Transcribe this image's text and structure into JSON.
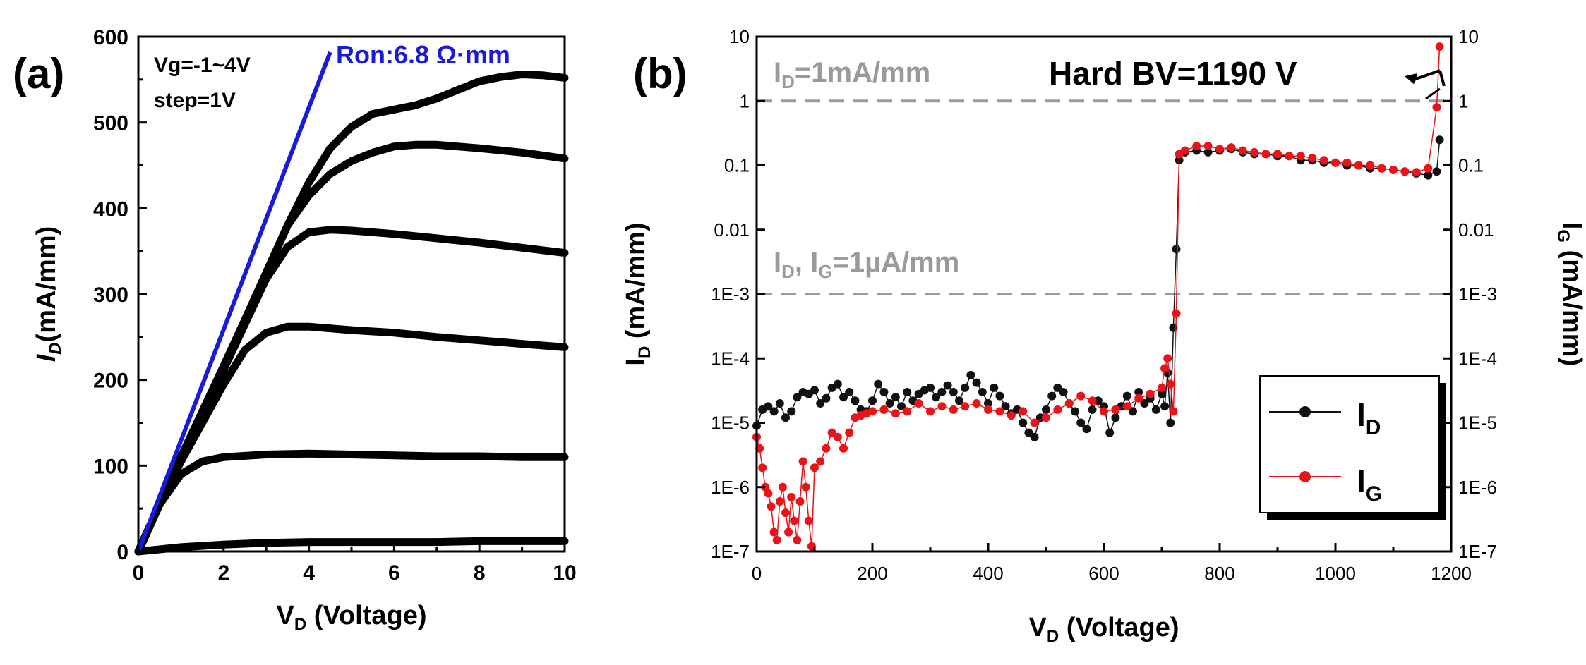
{
  "panels": {
    "a": {
      "label": "(a)",
      "annotation_vg": "Vg=-1~4V",
      "annotation_step": "step=1V",
      "annotation_ron": "Ron:6.8 Ω·mm",
      "xlabel_main": "V",
      "xlabel_sub": "D",
      "xlabel_rest": " (Voltage)",
      "ylabel_main": "I",
      "ylabel_sub": "D",
      "ylabel_rest": "(mA/mm)"
    },
    "b": {
      "label": "(b)",
      "annotation_id_line": "I",
      "annotation_id_line_sub": "D",
      "annotation_id_line_rest": "=1mA/mm",
      "annotation_ua_a": "I",
      "annotation_ua_a_sub": "D",
      "annotation_ua_mid": ", I",
      "annotation_ua_b_sub": "G",
      "annotation_ua_rest": "=1µA/mm",
      "annotation_bv": "Hard BV=1190 V",
      "xlabel_main": "V",
      "xlabel_sub": "D",
      "xlabel_rest": " (Voltage)",
      "ylabel_left_main": "I",
      "ylabel_left_sub": "D",
      "ylabel_left_rest": " (mA/mm)",
      "ylabel_right_main": "I",
      "ylabel_right_sub": "G",
      "ylabel_right_rest": " (mA/mm)",
      "legend": [
        {
          "main": "I",
          "sub": "D",
          "color": "#111111"
        },
        {
          "main": "I",
          "sub": "G",
          "color": "#e8141a"
        }
      ]
    }
  },
  "colors": {
    "curve": "#000000",
    "ron_line": "#1a1adb",
    "ron_text": "#1a1adb",
    "ref_line": "#9a9a9a",
    "ref_text": "#9a9a9a",
    "ig": "#e8141a",
    "id": "#111111"
  },
  "chart_data": [
    {
      "type": "line",
      "xlim": [
        0,
        10
      ],
      "ylim": [
        0,
        600
      ],
      "xticks": [
        "0",
        "2",
        "4",
        "6",
        "8",
        "10"
      ],
      "yticks": [
        "0",
        "100",
        "200",
        "300",
        "400",
        "500",
        "600"
      ],
      "series": [
        {
          "x": [
            0,
            1,
            2,
            3,
            4,
            5,
            6,
            7,
            8,
            9,
            10
          ],
          "values": [
            0,
            5,
            8,
            10,
            11,
            11,
            11,
            11,
            12,
            12,
            12
          ]
        },
        {
          "x": [
            0,
            0.5,
            1,
            1.5,
            2,
            3,
            4,
            5,
            6,
            7,
            8,
            9,
            10
          ],
          "values": [
            0,
            55,
            90,
            105,
            110,
            113,
            114,
            113,
            112,
            111,
            111,
            110,
            110
          ]
        },
        {
          "x": [
            0,
            0.5,
            1,
            1.5,
            2,
            2.5,
            3,
            3.5,
            4,
            5,
            6,
            7,
            8,
            9,
            10
          ],
          "values": [
            0,
            55,
            105,
            150,
            195,
            235,
            255,
            262,
            262,
            258,
            255,
            250,
            246,
            242,
            238
          ]
        },
        {
          "x": [
            0,
            0.5,
            1,
            1.5,
            2,
            2.5,
            3,
            3.5,
            4,
            4.5,
            5,
            6,
            7,
            8,
            9,
            10
          ],
          "values": [
            0,
            55,
            108,
            160,
            212,
            265,
            318,
            355,
            372,
            375,
            374,
            370,
            365,
            360,
            354,
            348
          ]
        },
        {
          "x": [
            0,
            0.5,
            1,
            1.5,
            2,
            2.5,
            3,
            3.5,
            4,
            4.5,
            5,
            5.5,
            6,
            6.5,
            7,
            8,
            9,
            10
          ],
          "values": [
            0,
            55,
            110,
            163,
            216,
            270,
            325,
            380,
            415,
            440,
            455,
            465,
            472,
            474,
            474,
            470,
            465,
            458
          ]
        },
        {
          "x": [
            0,
            0.5,
            1,
            1.5,
            2,
            2.5,
            3,
            3.5,
            4,
            4.5,
            5,
            5.5,
            6,
            6.5,
            7,
            7.5,
            8,
            8.5,
            9,
            9.5,
            10
          ],
          "values": [
            0,
            55,
            110,
            163,
            216,
            270,
            325,
            380,
            430,
            470,
            495,
            510,
            515,
            520,
            528,
            538,
            548,
            553,
            556,
            555,
            552
          ]
        }
      ],
      "ron_line": {
        "x": [
          0,
          4.5
        ],
        "values": [
          0,
          582
        ]
      }
    },
    {
      "type": "scatter",
      "x_label": "V_D (Voltage)",
      "xlim": [
        0,
        1200
      ],
      "ylim": [
        1e-07,
        10
      ],
      "yscale": "log",
      "xticks": [
        "0",
        "200",
        "400",
        "600",
        "800",
        "1000",
        "1200"
      ],
      "yticks": [
        "1E-7",
        "1E-6",
        "1E-5",
        "1E-4",
        "1E-3",
        "0.01",
        "0.1",
        "1",
        "10"
      ],
      "reference_lines": [
        1,
        0.001
      ],
      "series": [
        {
          "name": "I_D",
          "x": [
            0,
            10,
            20,
            30,
            40,
            50,
            60,
            70,
            80,
            90,
            100,
            110,
            120,
            130,
            140,
            150,
            160,
            170,
            180,
            190,
            200,
            210,
            220,
            230,
            240,
            250,
            260,
            270,
            280,
            290,
            300,
            310,
            320,
            330,
            340,
            350,
            360,
            370,
            380,
            390,
            400,
            410,
            420,
            430,
            440,
            450,
            460,
            470,
            480,
            490,
            500,
            510,
            520,
            530,
            540,
            550,
            560,
            570,
            580,
            590,
            600,
            610,
            620,
            630,
            640,
            650,
            660,
            670,
            680,
            690,
            700,
            705,
            710,
            715,
            720,
            725,
            730,
            740,
            760,
            780,
            800,
            820,
            840,
            860,
            880,
            900,
            920,
            940,
            960,
            980,
            1000,
            1020,
            1040,
            1060,
            1080,
            1100,
            1120,
            1140,
            1160,
            1175,
            1180
          ],
          "values": [
            9e-06,
            1.6e-05,
            1.8e-05,
            1.5e-05,
            2e-05,
            1.2e-05,
            1.5e-05,
            2.5e-05,
            3e-05,
            2.8e-05,
            3.2e-05,
            2e-05,
            2.4e-05,
            3.5e-05,
            4e-05,
            2.5e-05,
            3e-05,
            2.2e-05,
            1.6e-05,
            1.5e-05,
            2.2e-05,
            4e-05,
            3e-05,
            2e-05,
            2.5e-05,
            1.8e-05,
            3e-05,
            2.2e-05,
            2.8e-05,
            3.2e-05,
            3.5e-05,
            2.5e-05,
            3e-05,
            3.8e-05,
            3e-05,
            2.2e-05,
            3.5e-05,
            5.5e-05,
            4.2e-05,
            3e-05,
            2e-05,
            3.5e-05,
            2.6e-05,
            1.8e-05,
            1.4e-05,
            1.6e-05,
            1e-05,
            7e-06,
            6e-06,
            1.2e-05,
            1.6e-05,
            2.6e-05,
            3.5e-05,
            3e-05,
            2e-05,
            1.5e-05,
            1e-05,
            8e-06,
            1.6e-05,
            2.2e-05,
            1.8e-05,
            7e-06,
            1.2e-05,
            1.8e-05,
            2.6e-05,
            1.5e-05,
            3e-05,
            2e-05,
            2.4e-05,
            1.6e-05,
            2.8e-05,
            1.8e-05,
            6e-05,
            1e-05,
            0.0003,
            0.005,
            0.12,
            0.16,
            0.17,
            0.16,
            0.17,
            0.18,
            0.16,
            0.15,
            0.15,
            0.14,
            0.14,
            0.12,
            0.12,
            0.11,
            0.11,
            0.1,
            0.1,
            0.09,
            0.09,
            0.085,
            0.08,
            0.075,
            0.07,
            0.08,
            0.25
          ]
        },
        {
          "name": "I_G",
          "x": [
            0,
            5,
            10,
            15,
            20,
            25,
            30,
            35,
            40,
            45,
            50,
            55,
            60,
            65,
            70,
            75,
            80,
            85,
            90,
            95,
            100,
            110,
            120,
            130,
            140,
            150,
            160,
            170,
            180,
            190,
            200,
            220,
            240,
            260,
            280,
            300,
            320,
            340,
            360,
            380,
            400,
            420,
            440,
            460,
            480,
            500,
            520,
            540,
            560,
            580,
            600,
            620,
            640,
            660,
            680,
            700,
            705,
            710,
            715,
            720,
            725,
            730,
            740,
            760,
            780,
            800,
            820,
            840,
            860,
            880,
            900,
            920,
            940,
            960,
            980,
            1000,
            1020,
            1040,
            1060,
            1080,
            1100,
            1120,
            1140,
            1160,
            1175,
            1180
          ],
          "values": [
            6e-06,
            4e-06,
            2e-06,
            1e-06,
            8e-07,
            5e-07,
            2e-07,
            1.5e-07,
            6e-07,
            1e-06,
            4e-07,
            2e-07,
            7e-07,
            3e-07,
            1.5e-07,
            6e-07,
            2.5e-06,
            1e-06,
            3e-07,
            1.2e-07,
            2e-06,
            2.5e-06,
            4e-06,
            7e-06,
            6e-06,
            4e-06,
            7e-06,
            1.2e-05,
            1.3e-05,
            1.4e-05,
            1.5e-05,
            1.6e-05,
            1.4e-05,
            1.5e-05,
            2e-05,
            1.5e-05,
            1.8e-05,
            1.6e-05,
            1.8e-05,
            2e-05,
            1.6e-05,
            1.5e-05,
            1.3e-05,
            1.5e-05,
            1e-05,
            1.2e-05,
            1.6e-05,
            2e-05,
            2.6e-05,
            2.2e-05,
            1.5e-05,
            1.6e-05,
            1.8e-05,
            2.4e-05,
            2.8e-05,
            3.5e-05,
            7e-05,
            0.0001,
            4e-05,
            1.5e-05,
            0.0005,
            0.15,
            0.17,
            0.2,
            0.2,
            0.18,
            0.19,
            0.17,
            0.16,
            0.15,
            0.15,
            0.14,
            0.14,
            0.13,
            0.12,
            0.11,
            0.11,
            0.1,
            0.1,
            0.09,
            0.085,
            0.08,
            0.078,
            0.09,
            0.8,
            7
          ]
        }
      ]
    }
  ]
}
